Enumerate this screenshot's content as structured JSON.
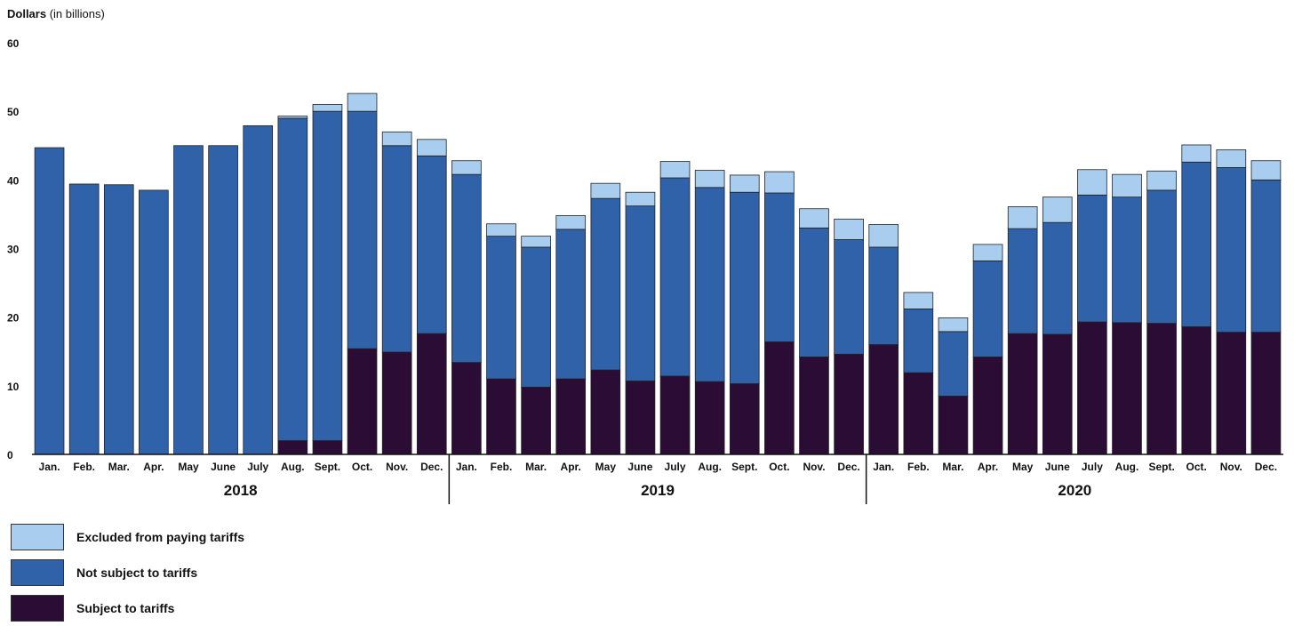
{
  "chart_data": {
    "type": "bar",
    "stacked": true,
    "ylabel": "Dollars",
    "ylabel_unit": "(in billions)",
    "ylim": [
      0,
      60
    ],
    "yticks": [
      "0",
      "10",
      "20",
      "30",
      "40",
      "50",
      "60"
    ],
    "grid": false,
    "legend_position": "bottom-left",
    "categories": [
      "Jan.",
      "Feb.",
      "Mar.",
      "Apr.",
      "May",
      "June",
      "July",
      "Aug.",
      "Sept.",
      "Oct.",
      "Nov.",
      "Dec.",
      "Jan.",
      "Feb.",
      "Mar.",
      "Apr.",
      "May",
      "June",
      "July",
      "Aug.",
      "Sept.",
      "Oct.",
      "Nov.",
      "Dec.",
      "Jan.",
      "Feb.",
      "Mar.",
      "Apr.",
      "May",
      "June",
      "July",
      "Aug.",
      "Sept.",
      "Oct.",
      "Nov.",
      "Dec."
    ],
    "years": [
      "2018",
      "2019",
      "2020"
    ],
    "series": [
      {
        "name": "Subject to tariffs",
        "color": "#2a0c35",
        "values": [
          0,
          0,
          0,
          0,
          0,
          0,
          0,
          2,
          2,
          15.4,
          14.9,
          17.6,
          13.4,
          11,
          9.8,
          11,
          12.3,
          10.7,
          11.4,
          10.6,
          10.3,
          16.4,
          14.2,
          14.6,
          16,
          11.9,
          8.5,
          14.2,
          17.6,
          17.5,
          19.3,
          19.2,
          19.1,
          18.6,
          17.8,
          17.8
        ]
      },
      {
        "name": "Not subject to tariffs",
        "color": "#2f62a8",
        "values": [
          44.7,
          39.4,
          39.3,
          38.5,
          45,
          45,
          47.9,
          47,
          48,
          34.6,
          30.1,
          25.9,
          27.4,
          20.8,
          20.4,
          21.8,
          25,
          25.5,
          28.9,
          28.3,
          27.9,
          21.7,
          18.8,
          16.7,
          14.2,
          9.3,
          9.4,
          14,
          15.3,
          16.3,
          18.5,
          18.3,
          19.4,
          24,
          24,
          22.2
        ]
      },
      {
        "name": "Excluded from paying tariffs",
        "color": "#a8cdee",
        "values": [
          0,
          0,
          0,
          0,
          0,
          0,
          0,
          0.3,
          1,
          2.6,
          2,
          2.4,
          2,
          1.8,
          1.6,
          2,
          2.2,
          2,
          2.4,
          2.5,
          2.5,
          3.1,
          2.8,
          3,
          3.3,
          2.4,
          2,
          2.4,
          3.2,
          3.7,
          3.7,
          3.3,
          2.8,
          2.5,
          2.6,
          2.8
        ]
      }
    ]
  }
}
